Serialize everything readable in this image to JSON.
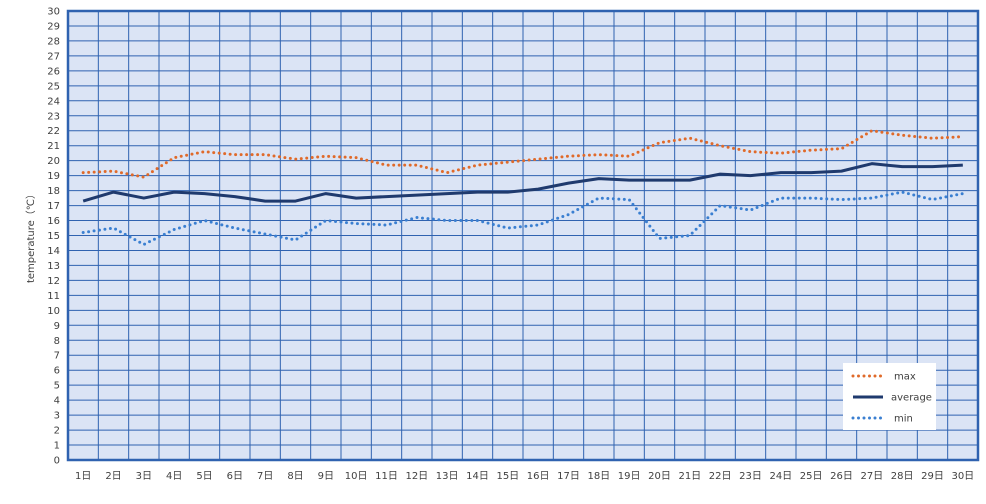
{
  "chart_data": {
    "type": "line",
    "ylabel": "temperature（℃）",
    "xlabel": "",
    "ylim": [
      0,
      30
    ],
    "yticks": [
      0,
      1,
      2,
      3,
      4,
      5,
      6,
      7,
      8,
      9,
      10,
      11,
      12,
      13,
      14,
      15,
      16,
      17,
      18,
      19,
      20,
      21,
      22,
      23,
      24,
      25,
      26,
      27,
      28,
      29,
      30
    ],
    "grid": true,
    "legend_position": "bottom-right",
    "categories": [
      "1日",
      "2日",
      "3日",
      "4日",
      "5日",
      "6日",
      "7日",
      "8日",
      "9日",
      "10日",
      "11日",
      "12日",
      "13日",
      "14日",
      "15日",
      "16日",
      "17日",
      "18日",
      "19日",
      "20日",
      "21日",
      "22日",
      "23日",
      "24日",
      "25日",
      "26日",
      "27日",
      "28日",
      "29日",
      "30日"
    ],
    "series": [
      {
        "name": "max",
        "color": "#e06a2a",
        "style": "dotted",
        "values": [
          19.2,
          19.3,
          18.9,
          20.2,
          20.6,
          20.4,
          20.4,
          20.1,
          20.3,
          20.2,
          19.7,
          19.7,
          19.2,
          19.7,
          19.9,
          20.1,
          20.3,
          20.4,
          20.3,
          21.2,
          21.5,
          21.0,
          20.6,
          20.5,
          20.7,
          20.8,
          22.0,
          21.7,
          21.5,
          21.6
        ]
      },
      {
        "name": "average",
        "color": "#1f3a6e",
        "style": "solid",
        "values": [
          17.3,
          17.9,
          17.5,
          17.9,
          17.8,
          17.6,
          17.3,
          17.3,
          17.8,
          17.5,
          17.6,
          17.7,
          17.8,
          17.9,
          17.9,
          18.1,
          18.5,
          18.8,
          18.7,
          18.7,
          18.7,
          19.1,
          19.0,
          19.2,
          19.2,
          19.3,
          19.8,
          19.6,
          19.6,
          19.7
        ]
      },
      {
        "name": "min",
        "color": "#3a7fd1",
        "style": "dotted",
        "values": [
          15.2,
          15.5,
          14.4,
          15.4,
          16.0,
          15.5,
          15.1,
          14.7,
          16.0,
          15.8,
          15.7,
          16.2,
          16.0,
          16.0,
          15.5,
          15.7,
          16.4,
          17.5,
          17.4,
          14.8,
          15.0,
          17.0,
          16.7,
          17.5,
          17.5,
          17.4,
          17.5,
          17.9,
          17.4,
          17.8
        ]
      }
    ]
  }
}
